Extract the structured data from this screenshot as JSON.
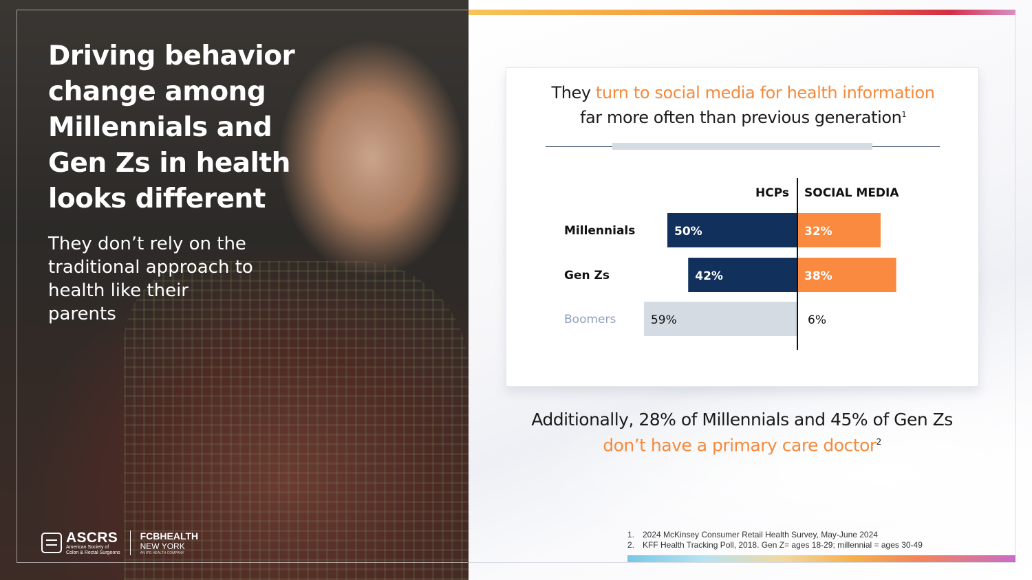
{
  "left": {
    "headline": "Driving behavior change among Millennials and Gen Zs in health looks different",
    "subhead": "They don’t rely on the traditional approach to health like their parents",
    "logo_ascrs": {
      "name": "ASCRS",
      "tagline_1": "American Society of",
      "tagline_2": "Colon & Rectal Surgeons"
    },
    "logo_fcb": {
      "name": "FCBHEALTH",
      "city": "NEW YORK",
      "tagline": "AN IPG HEALTH COMPANY"
    }
  },
  "card": {
    "title_part1": "They ",
    "title_accent": "turn to social media for health information",
    "title_line2": "far more often than previous generation",
    "title_sup": "1"
  },
  "chart_data": {
    "type": "bar",
    "orientation": "horizontal-diverging",
    "column_headers": [
      "HCPs",
      "SOCIAL MEDIA"
    ],
    "categories": [
      "Millennials",
      "Gen Zs",
      "Boomers"
    ],
    "series": [
      {
        "name": "HCPs",
        "values": [
          50,
          42,
          59
        ]
      },
      {
        "name": "SOCIAL MEDIA",
        "values": [
          32,
          38,
          6
        ]
      }
    ],
    "value_labels": {
      "HCPs": [
        "50%",
        "42%",
        "59%"
      ],
      "SOCIAL MEDIA": [
        "32%",
        "38%",
        "6%"
      ]
    },
    "unit": "%",
    "colors": {
      "hcp": "#12305c",
      "social": "#f98a3f",
      "boomers_hcp": "#d5dbe3",
      "boomers_label": "#8ea1bd",
      "divider": "#111111"
    }
  },
  "bottom": {
    "line1": "Additionally, 28% of Millennials and 45% of Gen Zs",
    "line2": "don’t have a primary care doctor",
    "sup": "2"
  },
  "footnotes": [
    {
      "num": "1.",
      "text": "2024 McKinsey Consumer Retail Health Survey, May-June 2024"
    },
    {
      "num": "2.",
      "text": "KFF Health Tracking Poll, 2018. Gen Z= ages 18-29; millennial = ages 30-49"
    }
  ]
}
